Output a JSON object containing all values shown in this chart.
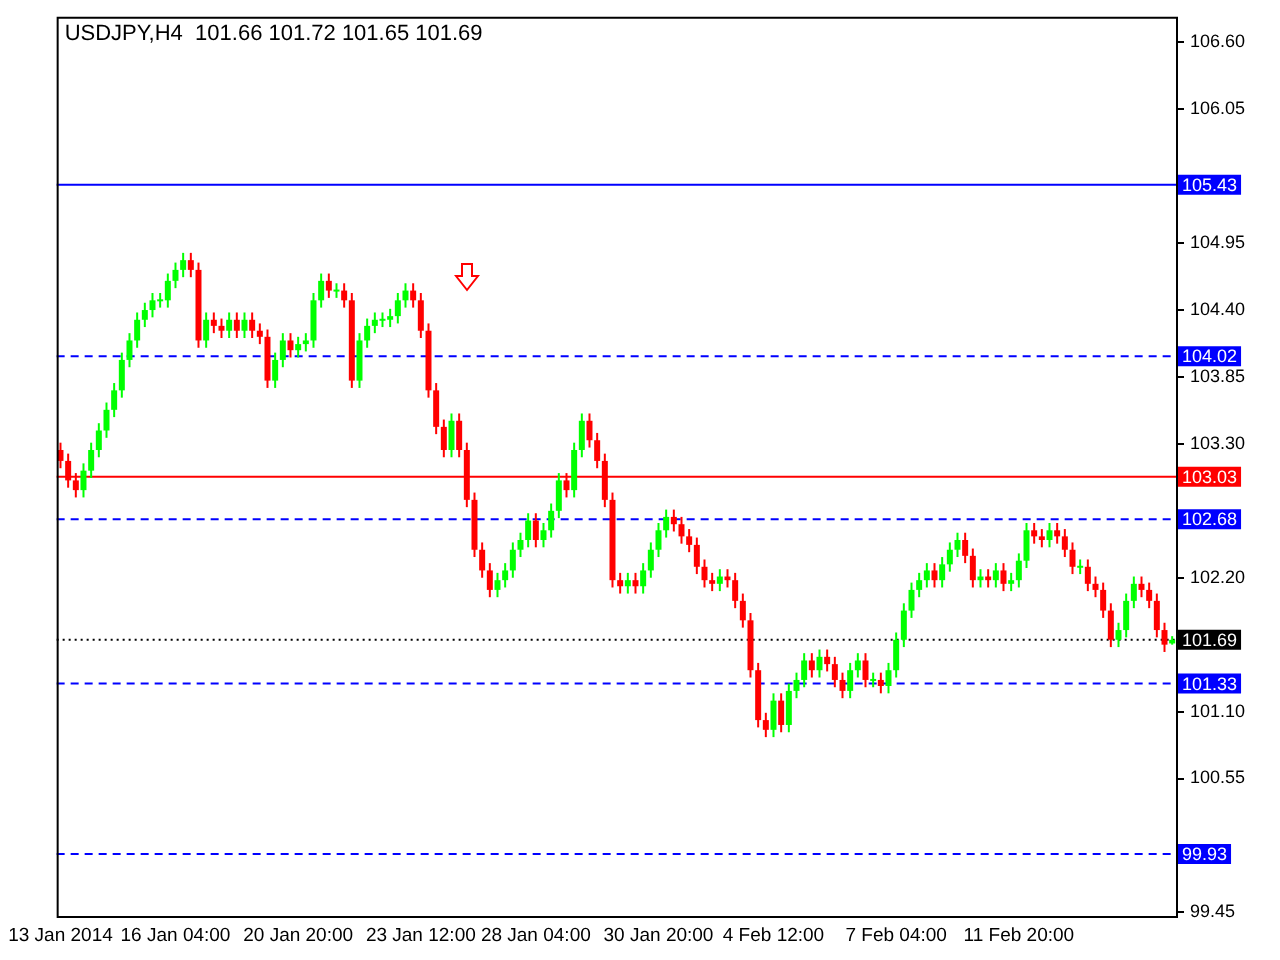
{
  "chart_data": {
    "type": "candlestick",
    "title": "USDJPY,H4  101.66 101.72 101.65 101.69",
    "categories": [
      "13 Jan 2014",
      null,
      null,
      null,
      null,
      null,
      null,
      null,
      null,
      null,
      null,
      null,
      null,
      null,
      null,
      "16 Jan 04:00",
      null,
      null,
      null,
      null,
      null,
      null,
      null,
      null,
      null,
      null,
      null,
      null,
      null,
      null,
      null,
      "20 Jan 20:00",
      null,
      null,
      null,
      null,
      null,
      null,
      null,
      null,
      null,
      null,
      null,
      null,
      null,
      null,
      null,
      "23 Jan 12:00",
      null,
      null,
      null,
      null,
      null,
      null,
      null,
      null,
      null,
      null,
      null,
      null,
      null,
      null,
      "28 Jan 04:00",
      null,
      null,
      null,
      null,
      null,
      null,
      null,
      null,
      null,
      null,
      null,
      null,
      null,
      null,
      null,
      "30 Jan 20:00",
      null,
      null,
      null,
      null,
      null,
      null,
      null,
      null,
      null,
      null,
      null,
      null,
      null,
      null,
      "4 Feb 12:00",
      null,
      null,
      null,
      null,
      null,
      null,
      null,
      null,
      null,
      null,
      null,
      null,
      null,
      null,
      null,
      "7 Feb 04:00",
      null,
      null,
      null,
      null,
      null,
      null,
      null,
      null,
      null,
      null,
      null,
      null,
      null,
      null,
      null,
      "11 Feb 20:00",
      null,
      null,
      null,
      null,
      null,
      null,
      null,
      null,
      null,
      null,
      null,
      null,
      null,
      null,
      null,
      null,
      null,
      null,
      null,
      null
    ],
    "ohlc": [
      [
        103.25,
        103.31,
        103.1,
        103.16
      ],
      [
        103.16,
        103.22,
        102.94,
        103.0
      ],
      [
        103.0,
        103.06,
        102.86,
        102.92
      ],
      [
        102.92,
        103.14,
        102.86,
        103.08
      ],
      [
        103.08,
        103.31,
        103.02,
        103.25
      ],
      [
        103.25,
        103.47,
        103.19,
        103.41
      ],
      [
        103.41,
        103.64,
        103.35,
        103.58
      ],
      [
        103.58,
        103.8,
        103.52,
        103.74
      ],
      [
        103.74,
        104.05,
        103.68,
        103.99
      ],
      [
        103.99,
        104.21,
        103.93,
        104.15
      ],
      [
        104.15,
        104.38,
        104.09,
        104.32
      ],
      [
        104.32,
        104.46,
        104.26,
        104.4
      ],
      [
        104.4,
        104.54,
        104.34,
        104.48
      ],
      [
        104.48,
        104.54,
        104.42,
        104.48
      ],
      [
        104.48,
        104.7,
        104.42,
        104.64
      ],
      [
        104.64,
        104.79,
        104.58,
        104.73
      ],
      [
        104.73,
        104.87,
        104.67,
        104.81
      ],
      [
        104.81,
        104.87,
        104.67,
        104.73
      ],
      [
        104.73,
        104.79,
        104.09,
        104.15
      ],
      [
        104.15,
        104.38,
        104.09,
        104.32
      ],
      [
        104.32,
        104.38,
        104.21,
        104.27
      ],
      [
        104.27,
        104.33,
        104.17,
        104.23
      ],
      [
        104.23,
        104.38,
        104.17,
        104.32
      ],
      [
        104.32,
        104.38,
        104.17,
        104.23
      ],
      [
        104.23,
        104.38,
        104.17,
        104.32
      ],
      [
        104.32,
        104.38,
        104.17,
        104.23
      ],
      [
        104.23,
        104.29,
        104.12,
        104.18
      ],
      [
        104.18,
        104.24,
        103.76,
        103.82
      ],
      [
        103.82,
        104.05,
        103.76,
        103.99
      ],
      [
        103.99,
        104.21,
        103.93,
        104.15
      ],
      [
        104.15,
        104.21,
        104.01,
        104.07
      ],
      [
        104.07,
        104.18,
        104.01,
        104.12
      ],
      [
        104.12,
        104.21,
        104.06,
        104.15
      ],
      [
        104.15,
        104.54,
        104.09,
        104.48
      ],
      [
        104.48,
        104.7,
        104.42,
        104.64
      ],
      [
        104.64,
        104.7,
        104.5,
        104.56
      ],
      [
        104.56,
        104.62,
        104.5,
        104.56
      ],
      [
        104.56,
        104.62,
        104.42,
        104.48
      ],
      [
        104.48,
        104.54,
        103.76,
        103.82
      ],
      [
        103.82,
        104.21,
        103.76,
        104.15
      ],
      [
        104.15,
        104.33,
        104.09,
        104.27
      ],
      [
        104.27,
        104.38,
        104.21,
        104.32
      ],
      [
        104.32,
        104.38,
        104.26,
        104.32
      ],
      [
        104.32,
        104.41,
        104.26,
        104.35
      ],
      [
        104.35,
        104.54,
        104.29,
        104.48
      ],
      [
        104.48,
        104.62,
        104.42,
        104.56
      ],
      [
        104.56,
        104.62,
        104.42,
        104.48
      ],
      [
        104.48,
        104.54,
        104.17,
        104.23
      ],
      [
        104.23,
        104.29,
        103.68,
        103.74
      ],
      [
        103.74,
        103.8,
        103.38,
        103.44
      ],
      [
        103.44,
        103.5,
        103.19,
        103.25
      ],
      [
        103.25,
        103.55,
        103.19,
        103.49
      ],
      [
        103.49,
        103.55,
        103.19,
        103.25
      ],
      [
        103.25,
        103.31,
        102.78,
        102.84
      ],
      [
        102.84,
        102.9,
        102.37,
        102.43
      ],
      [
        102.43,
        102.49,
        102.2,
        102.26
      ],
      [
        102.26,
        102.32,
        102.04,
        102.1
      ],
      [
        102.1,
        102.24,
        102.04,
        102.18
      ],
      [
        102.18,
        102.32,
        102.12,
        102.26
      ],
      [
        102.26,
        102.49,
        102.2,
        102.43
      ],
      [
        102.43,
        102.57,
        102.37,
        102.51
      ],
      [
        102.51,
        102.73,
        102.45,
        102.67
      ],
      [
        102.67,
        102.73,
        102.45,
        102.51
      ],
      [
        102.51,
        102.65,
        102.45,
        102.59
      ],
      [
        102.59,
        102.81,
        102.53,
        102.75
      ],
      [
        102.75,
        103.06,
        102.69,
        103.0
      ],
      [
        103.0,
        103.06,
        102.86,
        102.92
      ],
      [
        102.92,
        103.31,
        102.86,
        103.25
      ],
      [
        103.25,
        103.55,
        103.19,
        103.49
      ],
      [
        103.49,
        103.55,
        103.27,
        103.33
      ],
      [
        103.33,
        103.39,
        103.1,
        103.16
      ],
      [
        103.16,
        103.22,
        102.78,
        102.84
      ],
      [
        102.84,
        102.9,
        102.12,
        102.18
      ],
      [
        102.18,
        102.24,
        102.07,
        102.13
      ],
      [
        102.13,
        102.24,
        102.07,
        102.18
      ],
      [
        102.18,
        102.24,
        102.07,
        102.13
      ],
      [
        102.13,
        102.32,
        102.07,
        102.26
      ],
      [
        102.26,
        102.49,
        102.2,
        102.43
      ],
      [
        102.43,
        102.65,
        102.37,
        102.59
      ],
      [
        102.59,
        102.76,
        102.53,
        102.7
      ],
      [
        102.7,
        102.76,
        102.58,
        102.64
      ],
      [
        102.64,
        102.7,
        102.48,
        102.54
      ],
      [
        102.54,
        102.6,
        102.41,
        102.47
      ],
      [
        102.47,
        102.53,
        102.23,
        102.29
      ],
      [
        102.29,
        102.35,
        102.12,
        102.18
      ],
      [
        102.18,
        102.24,
        102.09,
        102.15
      ],
      [
        102.15,
        102.27,
        102.09,
        102.21
      ],
      [
        102.21,
        102.27,
        102.12,
        102.18
      ],
      [
        102.18,
        102.24,
        101.95,
        102.01
      ],
      [
        102.01,
        102.07,
        101.79,
        101.85
      ],
      [
        101.85,
        101.91,
        101.38,
        101.44
      ],
      [
        101.44,
        101.5,
        100.97,
        101.03
      ],
      [
        101.03,
        101.09,
        100.89,
        100.95
      ],
      [
        100.95,
        101.25,
        100.89,
        101.19
      ],
      [
        101.19,
        101.25,
        100.93,
        100.99
      ],
      [
        100.99,
        101.33,
        100.93,
        101.27
      ],
      [
        101.27,
        101.42,
        101.21,
        101.36
      ],
      [
        101.36,
        101.58,
        101.3,
        101.52
      ],
      [
        101.52,
        101.58,
        101.38,
        101.44
      ],
      [
        101.44,
        101.61,
        101.38,
        101.55
      ],
      [
        101.55,
        101.61,
        101.43,
        101.49
      ],
      [
        101.49,
        101.55,
        101.3,
        101.36
      ],
      [
        101.36,
        101.42,
        101.21,
        101.27
      ],
      [
        101.27,
        101.5,
        101.21,
        101.44
      ],
      [
        101.44,
        101.58,
        101.38,
        101.52
      ],
      [
        101.52,
        101.58,
        101.3,
        101.36
      ],
      [
        101.36,
        101.42,
        101.3,
        101.36
      ],
      [
        101.36,
        101.42,
        101.25,
        101.31
      ],
      [
        101.31,
        101.5,
        101.25,
        101.44
      ],
      [
        101.44,
        101.75,
        101.38,
        101.69
      ],
      [
        101.69,
        101.99,
        101.63,
        101.93
      ],
      [
        101.93,
        102.16,
        101.87,
        102.1
      ],
      [
        102.1,
        102.24,
        102.04,
        102.18
      ],
      [
        102.18,
        102.32,
        102.12,
        102.26
      ],
      [
        102.26,
        102.32,
        102.12,
        102.18
      ],
      [
        102.18,
        102.37,
        102.12,
        102.31
      ],
      [
        102.31,
        102.49,
        102.25,
        102.43
      ],
      [
        102.43,
        102.57,
        102.37,
        102.51
      ],
      [
        102.51,
        102.57,
        102.32,
        102.38
      ],
      [
        102.38,
        102.44,
        102.12,
        102.18
      ],
      [
        102.18,
        102.27,
        102.12,
        102.21
      ],
      [
        102.21,
        102.27,
        102.12,
        102.18
      ],
      [
        102.18,
        102.32,
        102.12,
        102.26
      ],
      [
        102.26,
        102.32,
        102.09,
        102.15
      ],
      [
        102.15,
        102.24,
        102.09,
        102.18
      ],
      [
        102.18,
        102.4,
        102.12,
        102.34
      ],
      [
        102.34,
        102.65,
        102.28,
        102.59
      ],
      [
        102.59,
        102.65,
        102.48,
        102.54
      ],
      [
        102.54,
        102.6,
        102.45,
        102.51
      ],
      [
        102.51,
        102.65,
        102.45,
        102.59
      ],
      [
        102.59,
        102.65,
        102.48,
        102.54
      ],
      [
        102.54,
        102.6,
        102.37,
        102.43
      ],
      [
        102.43,
        102.49,
        102.23,
        102.29
      ],
      [
        102.29,
        102.35,
        102.23,
        102.29
      ],
      [
        102.29,
        102.35,
        102.09,
        102.15
      ],
      [
        102.15,
        102.21,
        102.04,
        102.1
      ],
      [
        102.1,
        102.16,
        101.87,
        101.93
      ],
      [
        101.93,
        101.99,
        101.63,
        101.69
      ],
      [
        101.69,
        101.83,
        101.63,
        101.77
      ],
      [
        101.77,
        102.07,
        101.71,
        102.01
      ],
      [
        102.01,
        102.21,
        101.95,
        102.15
      ],
      [
        102.15,
        102.21,
        102.04,
        102.1
      ],
      [
        102.1,
        102.16,
        101.95,
        102.01
      ],
      [
        102.01,
        102.07,
        101.71,
        101.77
      ],
      [
        101.77,
        101.83,
        101.59,
        101.65
      ],
      [
        101.66,
        101.72,
        101.65,
        101.69
      ]
    ],
    "colors": [
      "#ff0000",
      "#ff0000",
      "#ff0000",
      "#00ff00",
      "#00ff00",
      "#00ff00",
      "#00ff00",
      "#00ff00",
      "#00ff00",
      "#00ff00",
      "#00ff00",
      "#00ff00",
      "#00ff00",
      "#00ff00",
      "#00ff00",
      "#00ff00",
      "#00ff00",
      "#ff0000",
      "#ff0000",
      "#00ff00",
      "#ff0000",
      "#ff0000",
      "#00ff00",
      "#ff0000",
      "#00ff00",
      "#ff0000",
      "#ff0000",
      "#ff0000",
      "#00ff00",
      "#00ff00",
      "#ff0000",
      "#00ff00",
      "#00ff00",
      "#00ff00",
      "#00ff00",
      "#ff0000",
      "#00ff00",
      "#ff0000",
      "#ff0000",
      "#00ff00",
      "#00ff00",
      "#00ff00",
      "#00ff00",
      "#00ff00",
      "#00ff00",
      "#00ff00",
      "#ff0000",
      "#ff0000",
      "#ff0000",
      "#ff0000",
      "#ff0000",
      "#00ff00",
      "#ff0000",
      "#ff0000",
      "#ff0000",
      "#ff0000",
      "#ff0000",
      "#00ff00",
      "#00ff00",
      "#00ff00",
      "#00ff00",
      "#00ff00",
      "#ff0000",
      "#00ff00",
      "#00ff00",
      "#00ff00",
      "#ff0000",
      "#00ff00",
      "#00ff00",
      "#ff0000",
      "#ff0000",
      "#ff0000",
      "#ff0000",
      "#ff0000",
      "#00ff00",
      "#ff0000",
      "#00ff00",
      "#00ff00",
      "#00ff00",
      "#00ff00",
      "#ff0000",
      "#ff0000",
      "#ff0000",
      "#ff0000",
      "#ff0000",
      "#ff0000",
      "#00ff00",
      "#ff0000",
      "#ff0000",
      "#ff0000",
      "#ff0000",
      "#ff0000",
      "#ff0000",
      "#00ff00",
      "#ff0000",
      "#00ff00",
      "#00ff00",
      "#00ff00",
      "#ff0000",
      "#00ff00",
      "#ff0000",
      "#ff0000",
      "#ff0000",
      "#00ff00",
      "#00ff00",
      "#ff0000",
      "#00ff00",
      "#ff0000",
      "#00ff00",
      "#00ff00",
      "#00ff00",
      "#00ff00",
      "#00ff00",
      "#00ff00",
      "#ff0000",
      "#00ff00",
      "#00ff00",
      "#00ff00",
      "#ff0000",
      "#ff0000",
      "#00ff00",
      "#ff0000",
      "#00ff00",
      "#ff0000",
      "#00ff00",
      "#00ff00",
      "#00ff00",
      "#ff0000",
      "#ff0000",
      "#00ff00",
      "#ff0000",
      "#ff0000",
      "#ff0000",
      "#00ff00",
      "#ff0000",
      "#ff0000",
      "#ff0000",
      "#ff0000",
      "#00ff00",
      "#00ff00",
      "#00ff00",
      "#ff0000",
      "#ff0000",
      "#ff0000",
      "#ff0000",
      "#00ff00"
    ],
    "ylim": [
      99.42,
      106.81
    ],
    "yticks": [
      {
        "value": 106.6,
        "label": "106.60"
      },
      106.05,
      104.95,
      {
        "value": 104.4,
        "label": "104.40"
      },
      103.85,
      {
        "value": 103.3,
        "label": "103.30"
      },
      {
        "value": 102.2,
        "label": "102.20"
      },
      {
        "value": 101.1,
        "label": "101.10"
      },
      100.55,
      99.45
    ],
    "ref_lines": [
      {
        "axis": "y",
        "value": 105.43,
        "label": "105.43",
        "color": "#0000ff",
        "line_style": "solid"
      },
      {
        "axis": "y",
        "value": 104.02,
        "label": "104.02",
        "color": "#0000ff",
        "line_style": "dashed"
      },
      {
        "axis": "y",
        "value": 103.03,
        "label": "103.03",
        "color": "#ff0000",
        "line_style": "solid"
      },
      {
        "axis": "y",
        "value": 102.68,
        "label": "102.68",
        "color": "#0000ff",
        "line_style": "dashed"
      },
      {
        "axis": "y",
        "value": 101.69,
        "label": "101.69",
        "color": "#000000",
        "line_style": "dotted"
      },
      {
        "axis": "y",
        "value": 101.33,
        "label": "101.33",
        "color": "#0000ff",
        "line_style": "dashed"
      },
      {
        "axis": "y",
        "value": 99.93,
        "label": "99.93",
        "color": "#0000ff",
        "line_style": "dashed"
      }
    ],
    "grid": false,
    "legend": false
  }
}
